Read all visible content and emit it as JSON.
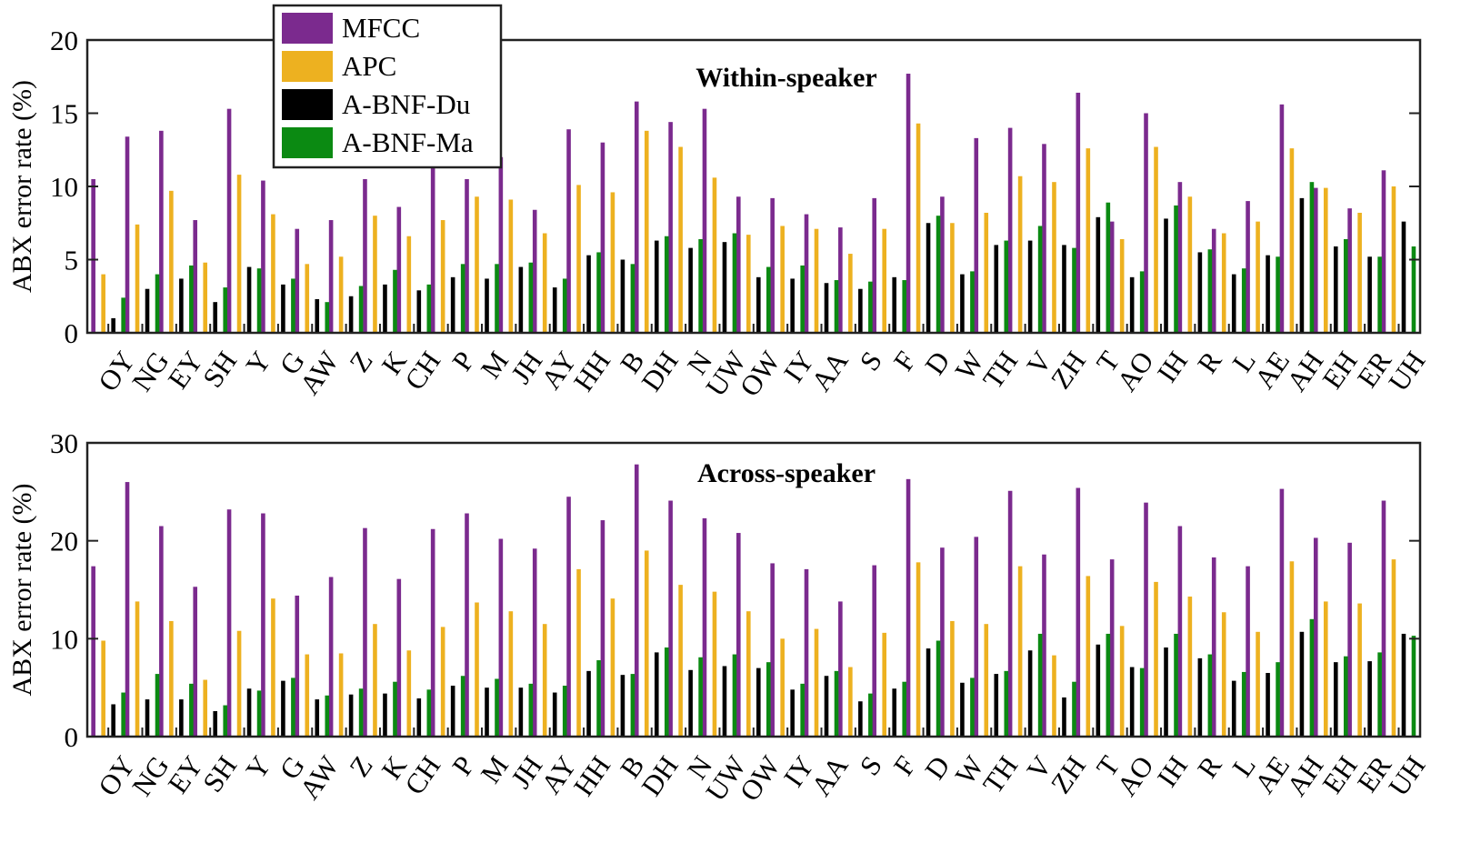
{
  "colors": {
    "MFCC": "#7B2A8E",
    "APC": "#EDB120",
    "A-BNF-Du": "#000000",
    "A-BNF-Ma": "#0B8A12"
  },
  "legend": {
    "entries": [
      "MFCC",
      "APC",
      "A-BNF-Du",
      "A-BNF-Ma"
    ],
    "placement": "top-left"
  },
  "chart_data": [
    {
      "type": "bar",
      "title": "Within-speaker",
      "xlabel": "",
      "ylabel": "ABX error rate (%)",
      "ylim": [
        0,
        20
      ],
      "yticks": [
        "0",
        "5",
        "10",
        "15",
        "20"
      ],
      "grid": false,
      "categories": [
        "OY",
        "NG",
        "EY",
        "SH",
        "Y",
        "G",
        "AW",
        "Z",
        "K",
        "CH",
        "P",
        "M",
        "JH",
        "AY",
        "HH",
        "B",
        "DH",
        "N",
        "UW",
        "OW",
        "IY",
        "AA",
        "S",
        "F",
        "D",
        "W",
        "TH",
        "V",
        "ZH",
        "T",
        "AO",
        "IH",
        "R",
        "L",
        "AE",
        "AH",
        "EH",
        "ER",
        "UH"
      ],
      "series": [
        {
          "name": "MFCC",
          "values": [
            10.5,
            13.4,
            13.8,
            7.7,
            15.3,
            10.4,
            7.1,
            7.7,
            10.5,
            8.6,
            11.3,
            10.5,
            12.0,
            8.4,
            13.9,
            13.0,
            15.8,
            14.4,
            15.3,
            9.3,
            9.2,
            8.1,
            7.2,
            9.2,
            17.7,
            9.3,
            13.3,
            14.0,
            12.9,
            16.4,
            7.6,
            15.0,
            10.3,
            7.1,
            9.0,
            15.6,
            9.9,
            8.5,
            11.1
          ]
        },
        {
          "name": "APC",
          "values": [
            4.0,
            7.4,
            9.7,
            4.8,
            10.8,
            8.1,
            4.7,
            5.2,
            8.0,
            6.6,
            7.7,
            9.3,
            9.1,
            6.8,
            10.1,
            9.6,
            13.8,
            12.7,
            10.6,
            6.7,
            7.3,
            7.1,
            5.4,
            7.1,
            14.3,
            7.5,
            8.2,
            10.7,
            10.3,
            12.6,
            6.4,
            12.7,
            9.3,
            6.8,
            7.6,
            12.6,
            9.9,
            8.2,
            10.0
          ]
        },
        {
          "name": "A-BNF-Du",
          "values": [
            1.0,
            3.0,
            3.7,
            2.1,
            4.5,
            3.3,
            2.3,
            2.5,
            3.3,
            2.9,
            3.8,
            3.7,
            4.5,
            3.1,
            5.3,
            5.0,
            6.3,
            5.8,
            6.2,
            3.8,
            3.7,
            3.4,
            3.0,
            3.8,
            7.5,
            4.0,
            6.0,
            6.3,
            6.0,
            7.9,
            3.8,
            7.8,
            5.5,
            4.0,
            5.3,
            9.2,
            5.9,
            5.2,
            7.6
          ]
        },
        {
          "name": "A-BNF-Ma",
          "values": [
            2.4,
            4.0,
            4.6,
            3.1,
            4.4,
            3.7,
            2.1,
            3.2,
            4.3,
            3.3,
            4.7,
            4.7,
            4.8,
            3.7,
            5.5,
            4.7,
            6.6,
            6.4,
            6.8,
            4.5,
            4.6,
            3.6,
            3.5,
            3.6,
            8.0,
            4.2,
            6.3,
            7.3,
            5.8,
            8.9,
            4.2,
            8.7,
            5.7,
            4.4,
            5.2,
            10.3,
            6.4,
            5.2,
            5.9
          ]
        }
      ]
    },
    {
      "type": "bar",
      "title": "Across-speaker",
      "xlabel": "",
      "ylabel": "ABX error rate (%)",
      "ylim": [
        0,
        30
      ],
      "yticks": [
        "0",
        "10",
        "20",
        "30"
      ],
      "grid": false,
      "categories": [
        "OY",
        "NG",
        "EY",
        "SH",
        "Y",
        "G",
        "AW",
        "Z",
        "K",
        "CH",
        "P",
        "M",
        "JH",
        "AY",
        "HH",
        "B",
        "DH",
        "N",
        "UW",
        "OW",
        "IY",
        "AA",
        "S",
        "F",
        "D",
        "W",
        "TH",
        "V",
        "ZH",
        "T",
        "AO",
        "IH",
        "R",
        "L",
        "AE",
        "AH",
        "EH",
        "ER",
        "UH"
      ],
      "series": [
        {
          "name": "MFCC",
          "values": [
            17.4,
            26.0,
            21.5,
            15.3,
            23.2,
            22.8,
            14.4,
            16.3,
            21.3,
            16.1,
            21.2,
            22.8,
            20.2,
            19.2,
            24.5,
            22.1,
            27.8,
            24.1,
            22.3,
            20.8,
            17.7,
            17.1,
            13.8,
            17.5,
            26.3,
            19.3,
            20.4,
            25.1,
            18.6,
            25.4,
            18.1,
            23.9,
            21.5,
            18.3,
            17.4,
            25.3,
            20.3,
            19.8,
            24.1
          ]
        },
        {
          "name": "APC",
          "values": [
            9.8,
            13.8,
            11.8,
            5.8,
            10.8,
            14.1,
            8.4,
            8.5,
            11.5,
            8.8,
            11.2,
            13.7,
            12.8,
            11.5,
            17.1,
            14.1,
            19.0,
            15.5,
            14.8,
            12.8,
            10.0,
            11.0,
            7.1,
            10.6,
            17.8,
            11.8,
            11.5,
            17.4,
            8.3,
            16.4,
            11.3,
            15.8,
            14.3,
            12.7,
            10.7,
            17.9,
            13.8,
            13.6,
            18.1
          ]
        },
        {
          "name": "A-BNF-Du",
          "values": [
            3.3,
            3.8,
            3.8,
            2.6,
            4.9,
            5.7,
            3.8,
            4.3,
            4.4,
            3.9,
            5.2,
            5.0,
            5.0,
            4.5,
            6.7,
            6.3,
            8.6,
            6.8,
            7.2,
            7.0,
            4.8,
            6.2,
            3.6,
            4.9,
            9.0,
            5.5,
            6.4,
            8.8,
            4.0,
            9.4,
            7.1,
            9.1,
            8.0,
            5.7,
            6.5,
            10.7,
            7.6,
            7.7,
            10.5
          ]
        },
        {
          "name": "A-BNF-Ma",
          "values": [
            4.5,
            6.4,
            5.4,
            3.2,
            4.7,
            6.0,
            4.2,
            4.9,
            5.6,
            4.8,
            6.2,
            5.9,
            5.4,
            5.2,
            7.8,
            6.4,
            9.1,
            8.1,
            8.4,
            7.6,
            5.4,
            6.7,
            4.4,
            5.6,
            9.8,
            6.0,
            6.7,
            10.5,
            5.6,
            10.5,
            7.0,
            10.5,
            8.4,
            6.6,
            7.6,
            12.0,
            8.2,
            8.6,
            10.3
          ]
        }
      ]
    }
  ]
}
